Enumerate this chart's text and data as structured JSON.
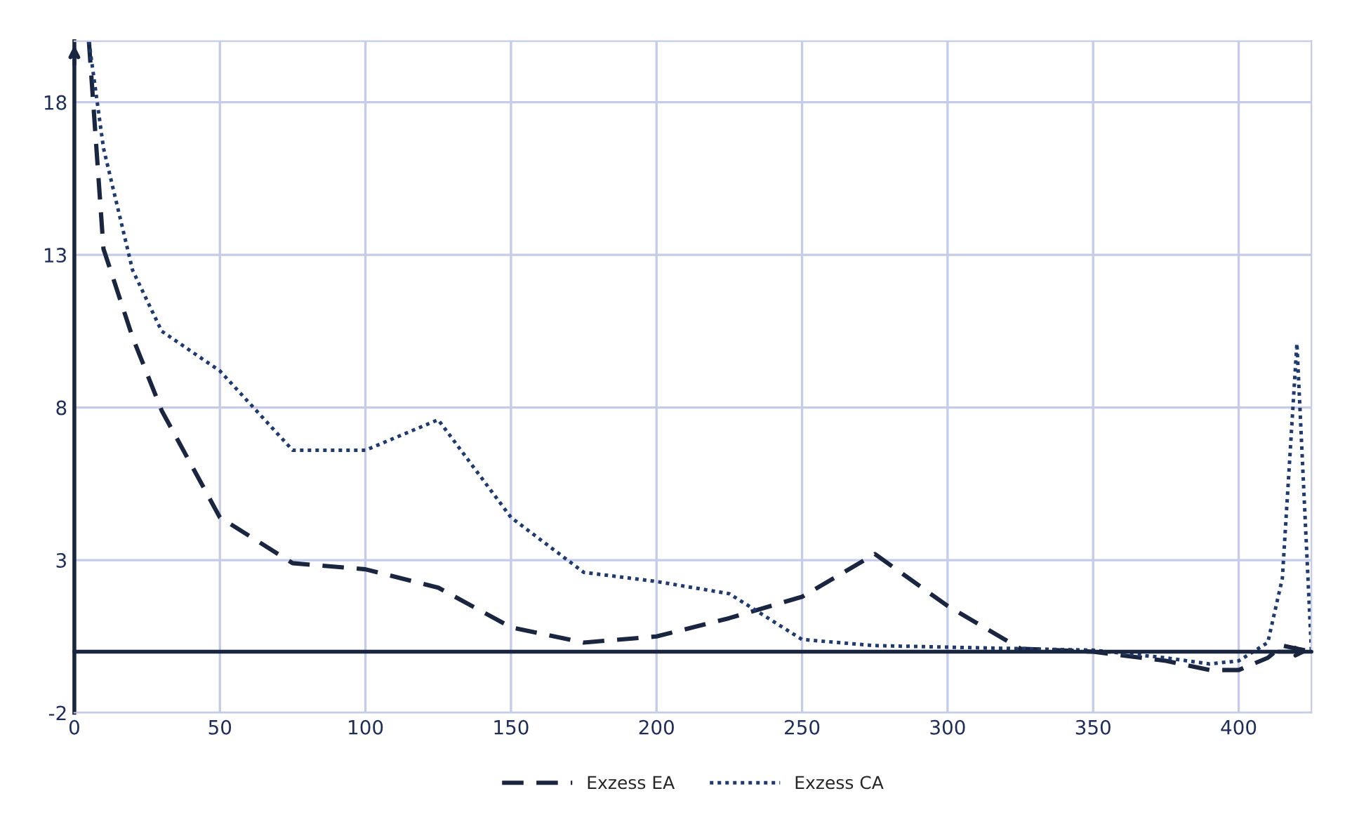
{
  "chart_data": {
    "type": "line",
    "x": [
      5,
      10,
      20,
      30,
      50,
      75,
      100,
      125,
      150,
      175,
      200,
      225,
      250,
      275,
      300,
      325,
      350,
      375,
      390,
      400,
      410,
      415,
      420,
      425
    ],
    "series": [
      {
        "name": "Exzess EA",
        "color": "#1a2540",
        "line_style": "dashed",
        "values": [
          20,
          13.2,
          10.3,
          7.9,
          4.4,
          2.9,
          2.7,
          2.1,
          0.8,
          0.3,
          0.5,
          1.1,
          1.8,
          3.2,
          1.5,
          0.1,
          0,
          -0.3,
          -0.6,
          -0.6,
          -0.2,
          0.2,
          0.1,
          0
        ]
      },
      {
        "name": "Exzess CA",
        "color": "#1f3a6e",
        "line_style": "dotted",
        "values": [
          20,
          16.5,
          12.5,
          10.5,
          9.2,
          6.6,
          6.6,
          7.6,
          4.4,
          2.6,
          2.3,
          1.9,
          0.4,
          0.2,
          0.15,
          0.1,
          0.05,
          -0.2,
          -0.4,
          -0.3,
          0.3,
          2.4,
          10.1,
          0
        ]
      }
    ],
    "xlim": [
      0,
      425
    ],
    "ylim": [
      -2,
      20
    ],
    "xticks": [
      0,
      50,
      100,
      150,
      200,
      250,
      300,
      350,
      400
    ],
    "yticks": [
      -2,
      3,
      8,
      13,
      18
    ],
    "ref_lines": [
      {
        "axis": "y",
        "value": 0,
        "color": "#1a2540"
      }
    ],
    "grid": true,
    "legend": "bottom"
  }
}
